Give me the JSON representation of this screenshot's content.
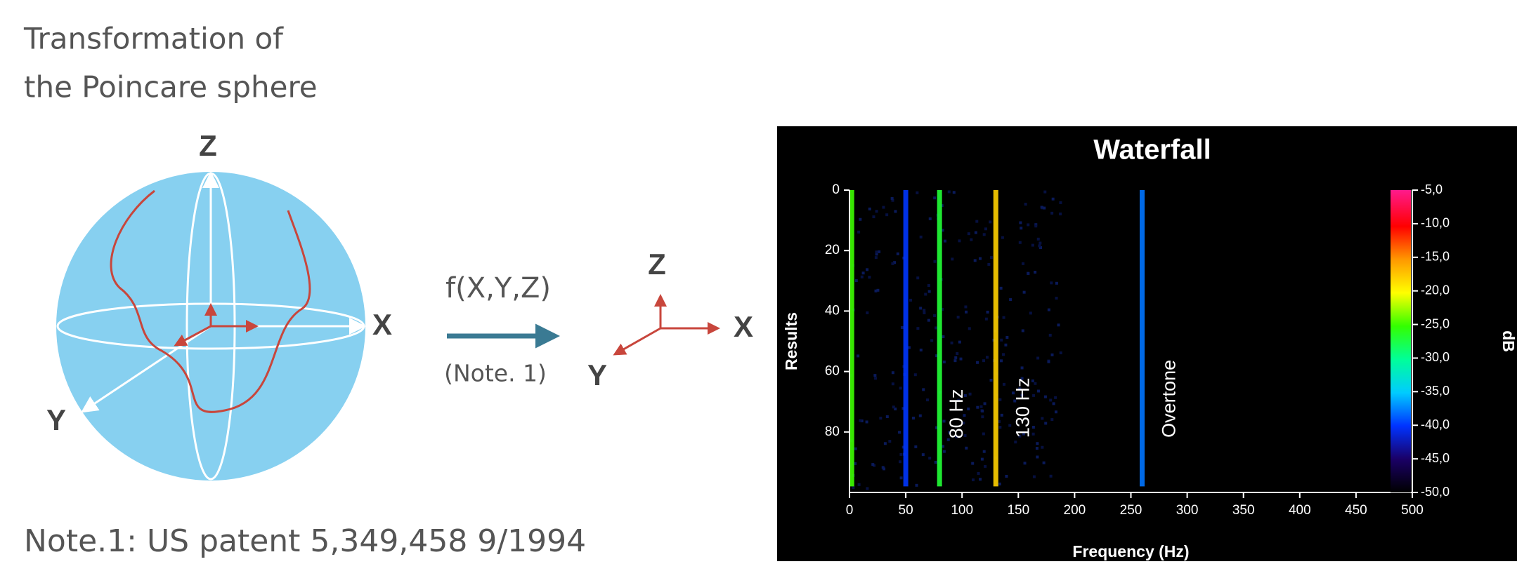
{
  "diagram": {
    "title_lines": [
      "Transformation of",
      "the Poincare sphere"
    ],
    "sphere_axes": {
      "z": "Z",
      "x": "X",
      "y": "Y"
    },
    "function": "f(X,Y,Z)",
    "note_ref": "(Note. 1)",
    "small_axes": {
      "z": "Z",
      "x": "X",
      "y": "Y"
    },
    "note": "Note.1:  US patent 5,349,458    9/1994"
  },
  "chart_data": {
    "type": "heatmap",
    "title": "Waterfall",
    "x_label": "Frequency (Hz)",
    "y_label": "Results",
    "colorbar_label": "dB",
    "xlim": [
      0,
      500
    ],
    "xticks": [
      0,
      50,
      100,
      150,
      200,
      250,
      300,
      350,
      400,
      450,
      500
    ],
    "ylim": [
      0,
      100
    ],
    "yticks": [
      0,
      20,
      40,
      60,
      80
    ],
    "clim": [
      -50,
      -5
    ],
    "cticks": [
      {
        "value": -5,
        "label": "-5,0"
      },
      {
        "value": -10,
        "label": "-10,0"
      },
      {
        "value": -15,
        "label": "-15,0"
      },
      {
        "value": -20,
        "label": "-20,0"
      },
      {
        "value": -25,
        "label": "-25,0"
      },
      {
        "value": -30,
        "label": "-30,0"
      },
      {
        "value": -35,
        "label": "-35,0"
      },
      {
        "value": -40,
        "label": "-40,0"
      },
      {
        "value": -45,
        "label": "-45,0"
      },
      {
        "value": -50,
        "label": "-50,0"
      }
    ],
    "bands": {
      "x": [
        2,
        50,
        80,
        130,
        260
      ],
      "values": [
        -25,
        -40,
        -27,
        -18,
        -38
      ]
    },
    "annotations": [
      {
        "text": "80 Hz",
        "x": 96,
        "y": 74
      },
      {
        "text": "130 Hz",
        "x": 155,
        "y": 72
      },
      {
        "text": "Overtone",
        "x": 285,
        "y": 69
      }
    ]
  }
}
